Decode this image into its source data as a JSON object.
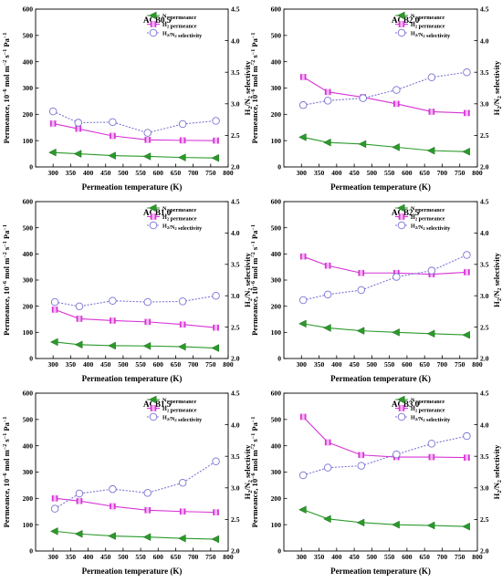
{
  "figure": {
    "x_label": "Permeation temperature (K)",
    "left_label_main": "Permeance, 10",
    "left_label_exp": "−6",
    "left_label_rest": "mol m",
    "left_label_exp2": "−2",
    "left_label_s": "s",
    "left_label_exp3": "−1",
    "left_label_pa": "Pa",
    "left_label_exp4": "−1",
    "right_label_h": "H",
    "right_label_sub1": "2",
    "right_label_mid": "/N",
    "right_label_sub2": "2",
    "right_label_tail": " selectivity",
    "legend": {
      "n2_a": "N",
      "n2_sub": "2",
      "n2_b": " permeance",
      "h2_a": "H",
      "h2_sub": "2",
      "h2_b": " permeance",
      "sel_a": "H",
      "sel_sub1": "2",
      "sel_mid": "/N",
      "sel_sub2": "2",
      "sel_b": " selectivity"
    }
  },
  "colors": {
    "n2": "#2a9a2a",
    "h2": "#d633d6",
    "selectivity": "#7a74d4"
  },
  "chart_data": [
    {
      "type": "line",
      "title": "ACB0.5",
      "x": [
        300,
        372,
        470,
        570,
        670,
        765
      ],
      "xlim": [
        250,
        800
      ],
      "xticks": [
        300,
        350,
        400,
        450,
        500,
        550,
        600,
        650,
        700,
        750,
        800
      ],
      "ylim": [
        0,
        600
      ],
      "yticks": [
        0,
        100,
        200,
        300,
        400,
        500,
        600
      ],
      "y2lim": [
        2.0,
        4.5
      ],
      "y2ticks": [
        2.0,
        2.5,
        3.0,
        3.5,
        4.0,
        4.5
      ],
      "series": [
        {
          "name": "N2 permeance",
          "axis": "left",
          "values": [
            55,
            50,
            43,
            40,
            36,
            34
          ]
        },
        {
          "name": "H2 permeance",
          "axis": "left",
          "values": [
            165,
            145,
            118,
            103,
            101,
            100
          ]
        },
        {
          "name": "H2/N2 selectivity",
          "axis": "right",
          "values": [
            2.88,
            2.7,
            2.71,
            2.54,
            2.68,
            2.73
          ]
        }
      ]
    },
    {
      "type": "line",
      "title": "ACB2.0",
      "x": [
        305,
        375,
        475,
        570,
        670,
        770
      ],
      "xlim": [
        250,
        800
      ],
      "xticks": [
        300,
        350,
        400,
        450,
        500,
        550,
        600,
        650,
        700,
        750,
        800
      ],
      "ylim": [
        0,
        600
      ],
      "yticks": [
        0,
        100,
        200,
        300,
        400,
        500,
        600
      ],
      "y2lim": [
        2.0,
        4.5
      ],
      "y2ticks": [
        2.0,
        2.5,
        3.0,
        3.5,
        4.0,
        4.5
      ],
      "series": [
        {
          "name": "N2 permeance",
          "axis": "left",
          "values": [
            113,
            93,
            87,
            75,
            62,
            58
          ]
        },
        {
          "name": "H2 permeance",
          "axis": "left",
          "values": [
            342,
            285,
            265,
            240,
            210,
            205
          ]
        },
        {
          "name": "H2/N2 selectivity",
          "axis": "right",
          "values": [
            2.98,
            3.05,
            3.09,
            3.22,
            3.42,
            3.5
          ]
        }
      ]
    },
    {
      "type": "line",
      "title": "ACB1.0",
      "x": [
        305,
        375,
        470,
        570,
        670,
        765
      ],
      "xlim": [
        250,
        800
      ],
      "xticks": [
        300,
        350,
        400,
        450,
        500,
        550,
        600,
        650,
        700,
        750,
        800
      ],
      "ylim": [
        0,
        600
      ],
      "yticks": [
        0,
        100,
        200,
        300,
        400,
        500,
        600
      ],
      "y2lim": [
        2.0,
        4.5
      ],
      "y2ticks": [
        2.0,
        2.5,
        3.0,
        3.5,
        4.0,
        4.5
      ],
      "series": [
        {
          "name": "N2 permeance",
          "axis": "left",
          "values": [
            63,
            53,
            49,
            48,
            45,
            40
          ]
        },
        {
          "name": "H2 permeance",
          "axis": "left",
          "values": [
            187,
            152,
            145,
            140,
            130,
            118
          ]
        },
        {
          "name": "H2/N2 selectivity",
          "axis": "right",
          "values": [
            2.9,
            2.83,
            2.92,
            2.9,
            2.91,
            3.0
          ]
        }
      ]
    },
    {
      "type": "line",
      "title": "ACB2.5",
      "x": [
        305,
        375,
        470,
        570,
        670,
        770
      ],
      "xlim": [
        250,
        800
      ],
      "xticks": [
        300,
        350,
        400,
        450,
        500,
        550,
        600,
        650,
        700,
        750,
        800
      ],
      "ylim": [
        0,
        600
      ],
      "yticks": [
        0,
        100,
        200,
        300,
        400,
        500,
        600
      ],
      "y2lim": [
        2.0,
        4.5
      ],
      "y2ticks": [
        2.0,
        2.5,
        3.0,
        3.5,
        4.0,
        4.5
      ],
      "series": [
        {
          "name": "N2 permeance",
          "axis": "left",
          "values": [
            133,
            117,
            106,
            100,
            95,
            90
          ]
        },
        {
          "name": "H2 permeance",
          "axis": "left",
          "values": [
            390,
            355,
            327,
            327,
            322,
            330
          ]
        },
        {
          "name": "H2/N2 selectivity",
          "axis": "right",
          "values": [
            2.93,
            3.02,
            3.09,
            3.3,
            3.4,
            3.65
          ]
        }
      ]
    },
    {
      "type": "line",
      "title": "ACB1.5",
      "x": [
        305,
        375,
        470,
        570,
        670,
        765
      ],
      "xlim": [
        250,
        800
      ],
      "xticks": [
        300,
        350,
        400,
        450,
        500,
        550,
        600,
        650,
        700,
        750,
        800
      ],
      "ylim": [
        0,
        600
      ],
      "yticks": [
        0,
        100,
        200,
        300,
        400,
        500,
        600
      ],
      "y2lim": [
        2.0,
        4.5
      ],
      "y2ticks": [
        2.0,
        2.5,
        3.0,
        3.5,
        4.0,
        4.5
      ],
      "series": [
        {
          "name": "N2 permeance",
          "axis": "left",
          "values": [
            75,
            65,
            57,
            53,
            48,
            45
          ]
        },
        {
          "name": "H2 permeance",
          "axis": "left",
          "values": [
            200,
            190,
            170,
            155,
            150,
            147
          ]
        },
        {
          "name": "H2/N2 selectivity",
          "axis": "right",
          "values": [
            2.67,
            2.91,
            2.98,
            2.92,
            3.08,
            3.42
          ]
        }
      ]
    },
    {
      "type": "line",
      "title": "ACB3.0",
      "x": [
        305,
        375,
        470,
        570,
        670,
        770
      ],
      "xlim": [
        250,
        800
      ],
      "xticks": [
        300,
        350,
        400,
        450,
        500,
        550,
        600,
        650,
        700,
        750,
        800
      ],
      "ylim": [
        0,
        600
      ],
      "yticks": [
        0,
        100,
        200,
        300,
        400,
        500,
        600
      ],
      "y2lim": [
        2.0,
        4.5
      ],
      "y2ticks": [
        2.0,
        2.5,
        3.0,
        3.5,
        4.0,
        4.5
      ],
      "series": [
        {
          "name": "N2 permeance",
          "axis": "left",
          "values": [
            157,
            122,
            108,
            100,
            97,
            93
          ]
        },
        {
          "name": "H2 permeance",
          "axis": "left",
          "values": [
            510,
            413,
            365,
            357,
            357,
            355
          ]
        },
        {
          "name": "H2/N2 selectivity",
          "axis": "right",
          "values": [
            3.2,
            3.32,
            3.35,
            3.53,
            3.7,
            3.82
          ]
        }
      ]
    }
  ]
}
